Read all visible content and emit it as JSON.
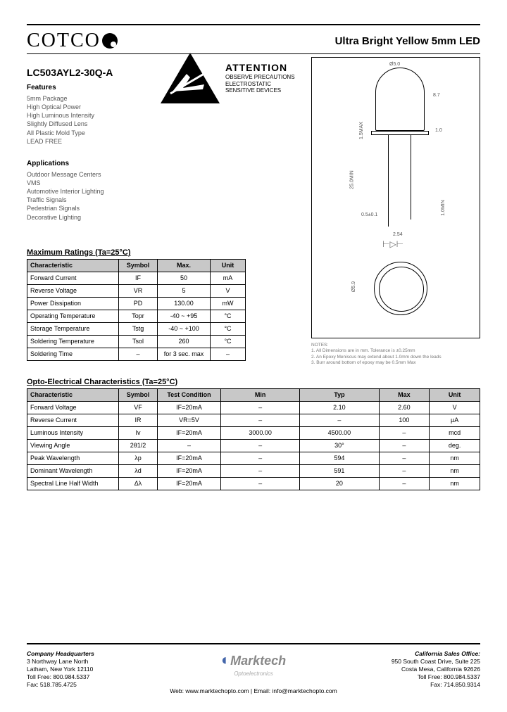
{
  "header": {
    "brand": "COTCO",
    "product_title": "Ultra Bright Yellow 5mm LED"
  },
  "part_number": "LC503AYL2-30Q-A",
  "attention": {
    "title": "ATTENTION",
    "line1": "OBSERVE PRECAUTIONS",
    "line2": "ELECTROSTATIC",
    "line3": "SENSITIVE DEVICES"
  },
  "features": {
    "heading": "Features",
    "items": [
      "5mm Package",
      "High Optical Power",
      "High Luminous Intensity",
      "Slightly Diffused Lens",
      "All Plastic Mold Type",
      "LEAD FREE"
    ]
  },
  "applications": {
    "heading": "Applications",
    "items": [
      "Outdoor Message Centers",
      "VMS",
      "Automotive Interior Lighting",
      "Traffic Signals",
      "Pedestrian Signals",
      "Decorative Lighting"
    ]
  },
  "diagram": {
    "dims": {
      "d1": "Ø5.0",
      "h": "8.7",
      "base": "1.5MAX",
      "bw": "1.0",
      "lead_len": "25.0MIN",
      "lead_w": "0.5±0.1",
      "short": "1.0MIN",
      "pitch": "2.54",
      "bottom": "Ø5.9"
    },
    "notes_label": "NOTES:",
    "notes": [
      "1. All Dimensions are in mm. Tolerance is ±0.25mm",
      "2. An Epoxy Meniscus may extend about 1.0mm down the leads",
      "3. Burr around bottom of epoxy may be 0.5mm Max"
    ]
  },
  "max_ratings": {
    "title": "Maximum Ratings (Ta=25°C)",
    "columns": [
      "Characteristic",
      "Symbol",
      "Max.",
      "Unit"
    ],
    "rows": [
      [
        "Forward Current",
        "IF",
        "50",
        "mA"
      ],
      [
        "Reverse Voltage",
        "VR",
        "5",
        "V"
      ],
      [
        "Power Dissipation",
        "PD",
        "130.00",
        "mW"
      ],
      [
        "Operating Temperature",
        "Topr",
        "-40 ~ +95",
        "°C"
      ],
      [
        "Storage Temperature",
        "Tstg",
        "-40 ~ +100",
        "°C"
      ],
      [
        "Soldering Temperature",
        "Tsol",
        "260",
        "°C"
      ],
      [
        "Soldering Time",
        "–",
        "for 3 sec. max",
        "–"
      ]
    ]
  },
  "opto": {
    "title": "Opto-Electrical Characteristics (Ta=25°C)",
    "columns": [
      "Characteristic",
      "Symbol",
      "Test Condition",
      "Min",
      "Typ",
      "Max",
      "Unit"
    ],
    "rows": [
      [
        "Forward Voltage",
        "VF",
        "IF=20mA",
        "–",
        "2.10",
        "2.60",
        "V"
      ],
      [
        "Reverse Current",
        "IR",
        "VR=5V",
        "–",
        "–",
        "100",
        "µA"
      ],
      [
        "Luminous Intensity",
        "Iv",
        "IF=20mA",
        "3000.00",
        "4500.00",
        "–",
        "mcd"
      ],
      [
        "Viewing Angle",
        "2θ1/2",
        "–",
        "–",
        "30°",
        "–",
        "deg."
      ],
      [
        "Peak Wavelength",
        "λp",
        "IF=20mA",
        "–",
        "594",
        "–",
        "nm"
      ],
      [
        "Dominant Wavelength",
        "λd",
        "IF=20mA",
        "–",
        "591",
        "–",
        "nm"
      ],
      [
        "Spectral Line Half Width",
        "Δλ",
        "IF=20mA",
        "–",
        "20",
        "–",
        "nm"
      ]
    ]
  },
  "footer": {
    "hq_title": "Company Headquarters",
    "hq": [
      "3 Northway Lane North",
      "Latham, New York 12110",
      "Toll Free: 800.984.5337",
      "Fax: 518.785.4725"
    ],
    "center_brand": "Marktech",
    "center_sub": "Optoelectronics",
    "center_line": "Web: www.marktechopto.com | Email: info@marktechopto.com",
    "ca_title": "California Sales Office:",
    "ca": [
      "950 South Coast Drive, Suite 225",
      "Costa Mesa, California 92626",
      "Toll Free: 800.984.5337",
      "Fax: 714.850.9314"
    ]
  }
}
